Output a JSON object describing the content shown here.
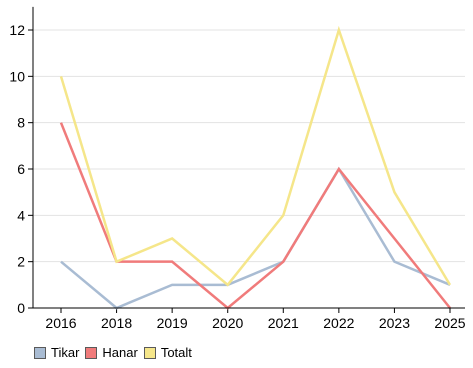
{
  "chart_data": {
    "type": "line",
    "categories": [
      "2016",
      "2018",
      "2019",
      "2020",
      "2021",
      "2022",
      "2023",
      "2025"
    ],
    "ylim": [
      0,
      13
    ],
    "yticks": [
      "0",
      "2",
      "4",
      "6",
      "8",
      "10",
      "12"
    ],
    "grid": true,
    "legend_position": "bottom-left",
    "series": [
      {
        "name": "Tikar",
        "color": "#a9bcd3",
        "values": [
          2,
          0,
          1,
          1,
          2,
          6,
          2,
          1
        ]
      },
      {
        "name": "Hanar",
        "color": "#f07b7b",
        "values": [
          8,
          2,
          2,
          0,
          2,
          6,
          3,
          0
        ]
      },
      {
        "name": "Totalt",
        "color": "#f5e68a",
        "values": [
          10,
          2,
          3,
          1,
          4,
          12,
          5,
          1
        ]
      }
    ]
  }
}
